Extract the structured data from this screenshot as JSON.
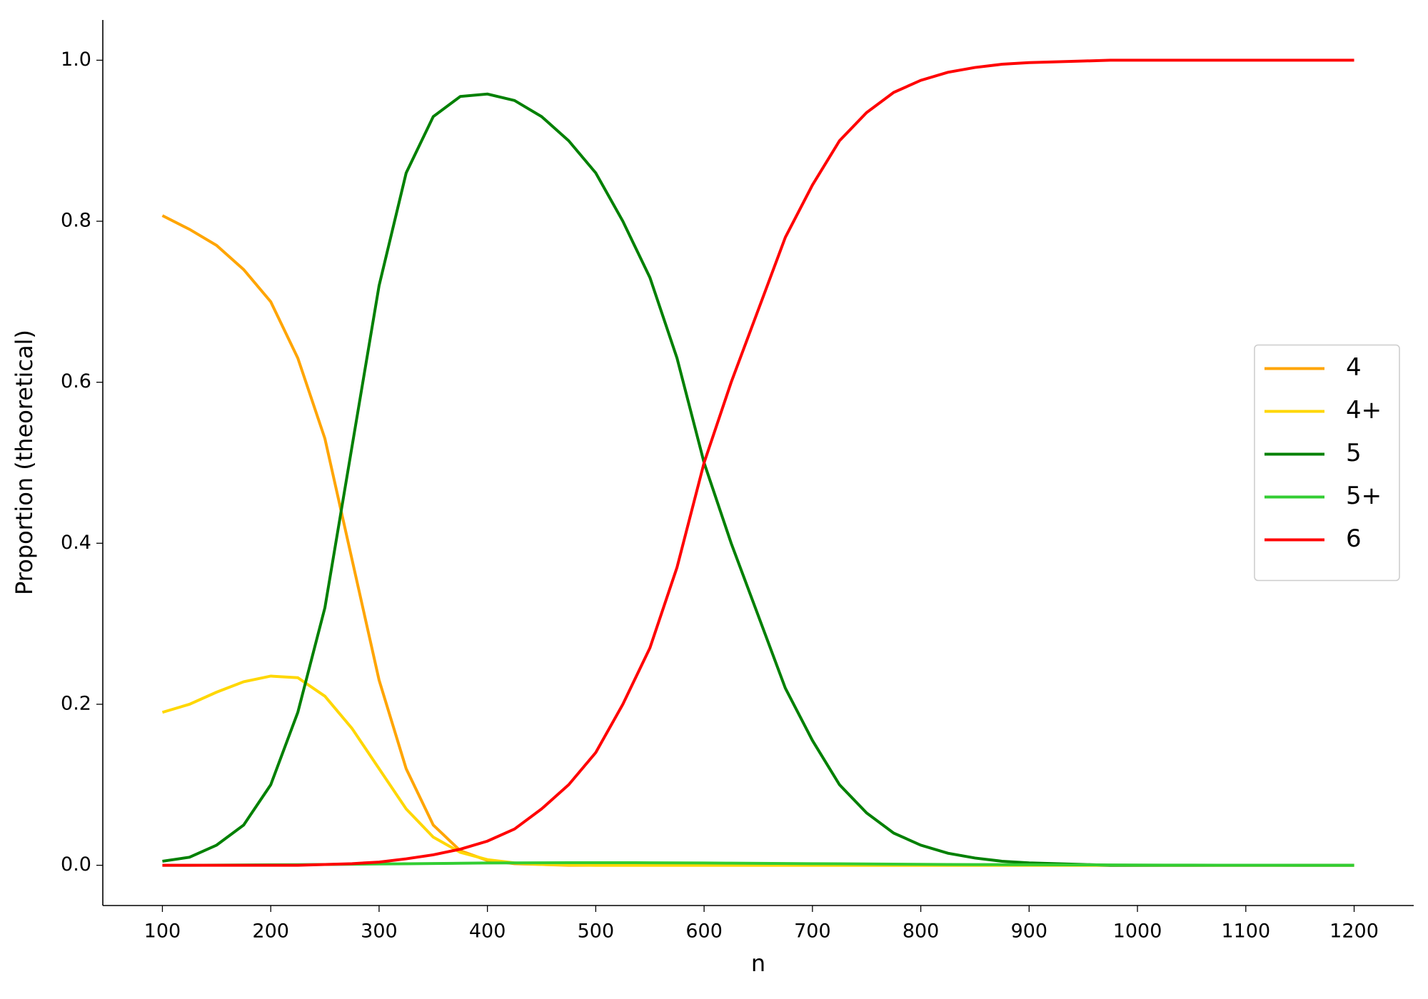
{
  "chart_data": {
    "type": "line",
    "xlabel": "n",
    "ylabel": "Proportion (theoretical)",
    "x": [
      100,
      125,
      150,
      175,
      200,
      225,
      250,
      275,
      300,
      325,
      350,
      375,
      400,
      425,
      450,
      475,
      500,
      525,
      550,
      575,
      600,
      625,
      650,
      675,
      700,
      725,
      750,
      775,
      800,
      825,
      850,
      875,
      900,
      925,
      950,
      975,
      1000,
      1025,
      1050,
      1075,
      1100,
      1125,
      1150,
      1175,
      1200
    ],
    "series": [
      {
        "name": "4",
        "color": "#ffa500",
        "values": [
          0.807,
          0.79,
          0.77,
          0.74,
          0.7,
          0.63,
          0.53,
          0.38,
          0.23,
          0.12,
          0.05,
          0.018,
          0.006,
          0.002,
          0.001,
          0,
          0,
          0,
          0,
          0,
          0,
          0,
          0,
          0,
          0,
          0,
          0,
          0,
          0,
          0,
          0,
          0,
          0,
          0,
          0,
          0,
          0,
          0,
          0,
          0,
          0,
          0,
          0,
          0,
          0
        ]
      },
      {
        "name": "4+",
        "color": "#ffd700",
        "values": [
          0.19,
          0.2,
          0.215,
          0.228,
          0.235,
          0.233,
          0.21,
          0.17,
          0.12,
          0.07,
          0.035,
          0.016,
          0.007,
          0.003,
          0.001,
          0.0005,
          0,
          0,
          0,
          0,
          0,
          0,
          0,
          0,
          0,
          0,
          0,
          0,
          0,
          0,
          0,
          0,
          0,
          0,
          0,
          0,
          0,
          0,
          0,
          0,
          0,
          0,
          0,
          0,
          0
        ]
      },
      {
        "name": "5",
        "color": "#008000",
        "values": [
          0.005,
          0.01,
          0.025,
          0.05,
          0.1,
          0.19,
          0.32,
          0.52,
          0.72,
          0.86,
          0.93,
          0.955,
          0.958,
          0.95,
          0.93,
          0.9,
          0.86,
          0.8,
          0.73,
          0.63,
          0.5,
          0.4,
          0.31,
          0.22,
          0.155,
          0.1,
          0.065,
          0.04,
          0.025,
          0.015,
          0.009,
          0.005,
          0.003,
          0.002,
          0.001,
          0,
          0,
          0,
          0,
          0,
          0,
          0,
          0,
          0,
          0
        ]
      },
      {
        "name": "5+",
        "color": "#32cd32",
        "values": [
          0,
          0,
          0.0002,
          0.0004,
          0.0006,
          0.0008,
          0.001,
          0.0013,
          0.0016,
          0.0019,
          0.0022,
          0.0025,
          0.0028,
          0.003,
          0.0031,
          0.0032,
          0.0032,
          0.0032,
          0.0031,
          0.003,
          0.0028,
          0.0026,
          0.0024,
          0.0022,
          0.002,
          0.0018,
          0.0016,
          0.0014,
          0.0012,
          0.001,
          0.0009,
          0.0008,
          0.0007,
          0.0006,
          0.0005,
          0.0004,
          0.0003,
          0.0002,
          0.0002,
          0.0001,
          0.0001,
          0.0001,
          0,
          0,
          0
        ]
      },
      {
        "name": "6",
        "color": "#ff0000",
        "values": [
          0,
          0,
          0,
          0,
          0,
          0,
          0.001,
          0.002,
          0.004,
          0.008,
          0.013,
          0.02,
          0.03,
          0.045,
          0.07,
          0.1,
          0.14,
          0.2,
          0.27,
          0.37,
          0.5,
          0.6,
          0.69,
          0.78,
          0.845,
          0.9,
          0.935,
          0.96,
          0.975,
          0.985,
          0.991,
          0.995,
          0.997,
          0.998,
          0.999,
          1.0,
          1.0,
          1.0,
          1.0,
          1.0,
          1.0,
          1.0,
          1.0,
          1.0,
          1.0
        ]
      }
    ],
    "xlim": [
      45,
      1255
    ],
    "ylim": [
      -0.05,
      1.05
    ],
    "xticks": [
      100,
      200,
      300,
      400,
      500,
      600,
      700,
      800,
      900,
      1000,
      1100,
      1200
    ],
    "yticks": [
      {
        "value": 0,
        "label": "0.0"
      },
      {
        "value": 0.2,
        "label": "0.2"
      },
      {
        "value": 0.4,
        "label": "0.4"
      },
      {
        "value": 0.6,
        "label": "0.6"
      },
      {
        "value": 0.8,
        "label": "0.8"
      },
      {
        "value": 1,
        "label": "1.0"
      }
    ],
    "legend": "right",
    "grid": false
  }
}
